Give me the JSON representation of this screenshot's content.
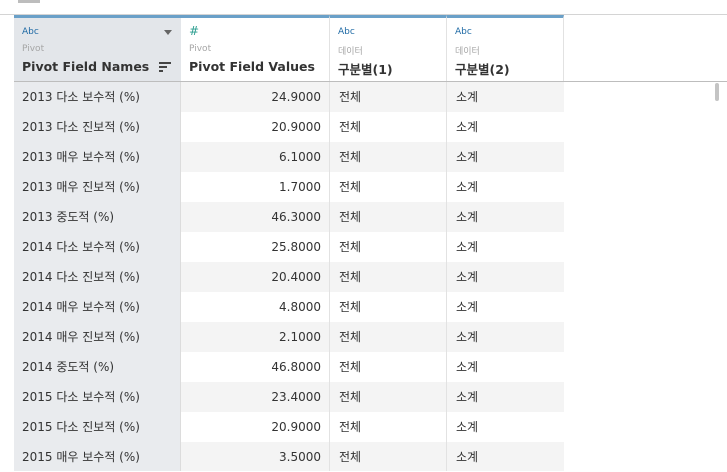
{
  "columns": [
    {
      "type_label": "Abc",
      "source": "Pivot",
      "name": "Pivot Field Names"
    },
    {
      "type_label": "#",
      "source": "Pivot",
      "name": "Pivot Field Values"
    },
    {
      "type_label": "Abc",
      "source": "데이터",
      "name": "구분별(1)"
    },
    {
      "type_label": "Abc",
      "source": "데이터",
      "name": "구분별(2)"
    }
  ],
  "rows": [
    {
      "name": "2013 다소 보수적 (%)",
      "value": "24.9000",
      "g1": "전체",
      "g2": "소계"
    },
    {
      "name": "2013 다소 진보적 (%)",
      "value": "20.9000",
      "g1": "전체",
      "g2": "소계"
    },
    {
      "name": "2013 매우 보수적 (%)",
      "value": "6.1000",
      "g1": "전체",
      "g2": "소계"
    },
    {
      "name": "2013 매우 진보적 (%)",
      "value": "1.7000",
      "g1": "전체",
      "g2": "소계"
    },
    {
      "name": "2013 중도적 (%)",
      "value": "46.3000",
      "g1": "전체",
      "g2": "소계"
    },
    {
      "name": "2014 다소 보수적 (%)",
      "value": "25.8000",
      "g1": "전체",
      "g2": "소계"
    },
    {
      "name": "2014 다소 진보적 (%)",
      "value": "20.4000",
      "g1": "전체",
      "g2": "소계"
    },
    {
      "name": "2014 매우 보수적 (%)",
      "value": "4.8000",
      "g1": "전체",
      "g2": "소계"
    },
    {
      "name": "2014 매우 진보적 (%)",
      "value": "2.1000",
      "g1": "전체",
      "g2": "소계"
    },
    {
      "name": "2014 중도적 (%)",
      "value": "46.8000",
      "g1": "전체",
      "g2": "소계"
    },
    {
      "name": "2015 다소 보수적 (%)",
      "value": "23.4000",
      "g1": "전체",
      "g2": "소계"
    },
    {
      "name": "2015 다소 진보적 (%)",
      "value": "20.9000",
      "g1": "전체",
      "g2": "소계"
    },
    {
      "name": "2015 매우 보수적 (%)",
      "value": "3.5000",
      "g1": "전체",
      "g2": "소계"
    }
  ],
  "icons": {
    "column_menu": "chevron-down-icon",
    "sort": "sort-icon"
  },
  "colors": {
    "header_accent": "#6aa0c8",
    "selected_column_bg": "#e9ebee",
    "type_label": "#1f6aa5"
  }
}
